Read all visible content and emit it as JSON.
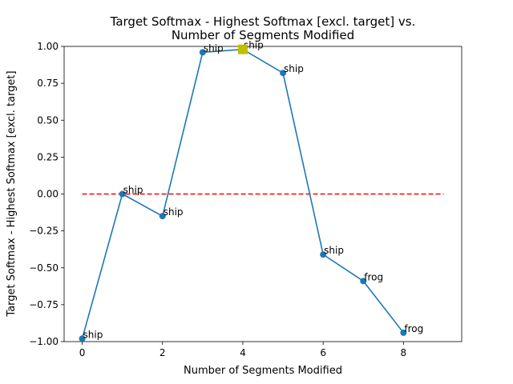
{
  "chart_data": {
    "type": "line",
    "title_lines": [
      "Target Softmax - Highest Softmax [excl. target] vs.",
      "Number of Segments Modified"
    ],
    "xlabel": "Number of Segments Modified",
    "ylabel": "Target Softmax - Highest Softmax [excl. target]",
    "xlim": [
      -0.45,
      9.45
    ],
    "ylim": [
      -1.0,
      1.0
    ],
    "x_ticks": [
      0,
      2,
      4,
      6,
      8
    ],
    "y_ticks": [
      -1.0,
      -0.75,
      -0.5,
      -0.25,
      0.0,
      0.25,
      0.5,
      0.75,
      1.0
    ],
    "y_tick_labels": [
      "−1.00",
      "−0.75",
      "−0.50",
      "−0.25",
      "0.00",
      "0.25",
      "0.50",
      "0.75",
      "1.00"
    ],
    "x_tick_labels": [
      "0",
      "2",
      "4",
      "6",
      "8"
    ],
    "grid": false,
    "series": [
      {
        "x": [
          0,
          1,
          2,
          3,
          4,
          5,
          6,
          7,
          8
        ],
        "y": [
          -0.98,
          0.0,
          -0.15,
          0.96,
          0.98,
          0.82,
          -0.41,
          -0.59,
          -0.94
        ],
        "point_labels": [
          "ship",
          "ship",
          "ship",
          "ship",
          "ship",
          "ship",
          "ship",
          "frog",
          "frog"
        ],
        "color": "#1f77b4"
      }
    ],
    "reference_line": {
      "y": 0.0,
      "x_range": [
        0,
        9
      ],
      "color": "#ff0000",
      "style": "dashed"
    },
    "highlight": {
      "x": 4,
      "y": 0.98,
      "color": "#bfbf00",
      "marker": "square"
    }
  }
}
